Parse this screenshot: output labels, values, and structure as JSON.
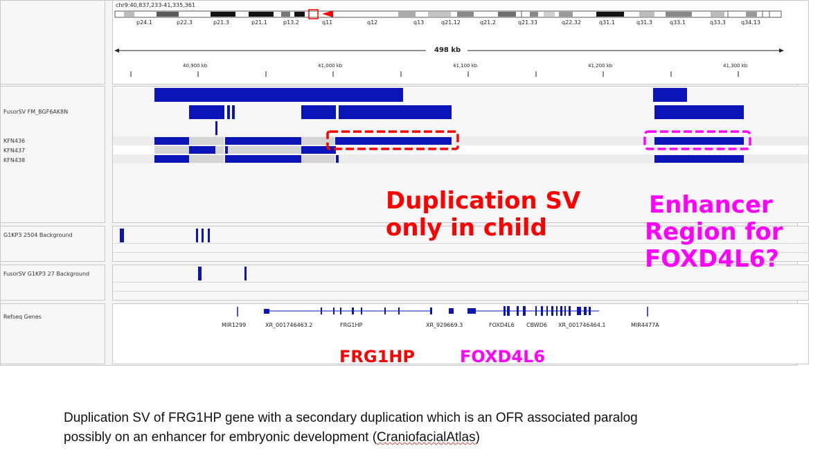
{
  "locus": "chr9:40,837,233-41,335,361",
  "bands": [
    "p24.1",
    "p22.3",
    "p21.3",
    "p21.1",
    "p13.2",
    "q11",
    "q12",
    "q13",
    "q21.12",
    "q21.2",
    "q21.33",
    "q22.32",
    "q31.1",
    "q31.3",
    "q33.1",
    "q33.3",
    "q34.13"
  ],
  "span": "498 kb",
  "ruler_ticks": [
    "40,900 kb",
    "41,000 kb",
    "41,100 kb",
    "41,200 kb",
    "41,300 kb"
  ],
  "tracks": {
    "fusorsv": "FusorSV FM_BGF6AK8N",
    "samples": [
      "KFN436",
      "KFN437",
      "KFN438"
    ],
    "bg1": "G1KP3 2504 Background",
    "bg2": "FusorSV G1KP3 27 Background",
    "refseq": "Refseq Genes"
  },
  "genes": [
    "MIR1299",
    "XR_001746463.2",
    "FRG1HP",
    "XR_929669.3",
    "FOXD4L6",
    "CBWD6",
    "XR_001746464.1",
    "MIR4477A"
  ],
  "annotations": {
    "dup_line1": "Duplication SV",
    "dup_line2": "only in child",
    "enh_line1": "Enhancer",
    "enh_line2": "Region for",
    "enh_line3": "FOXD4L6?",
    "gene_frg1hp": "FRG1HP",
    "gene_foxd4l6": "FOXD4L6"
  },
  "colors": {
    "feature": "#0a14b8",
    "red": "#ff0000",
    "magenta": "#ff00ff"
  },
  "caption": {
    "text1": "Duplication SV of FRG1HP gene with a secondary duplication which is an OFR associated paralog",
    "text2": "possibly on an enhancer for embryonic development (",
    "link": "CraniofacialAtlas",
    "text3": ")"
  }
}
